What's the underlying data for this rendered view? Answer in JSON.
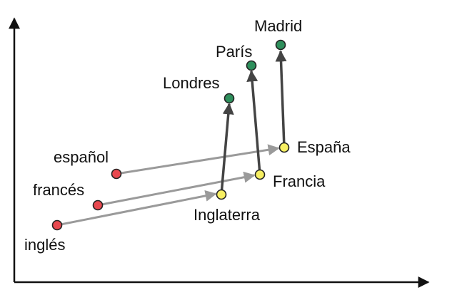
{
  "diagram": {
    "colors": {
      "language": "#e8484f",
      "country": "#f7ef62",
      "capital": "#2e8f5c",
      "relation_language_country": "#9a9a9a",
      "relation_country_capital": "#444444",
      "axis": "#111111"
    },
    "groups": [
      {
        "language": "español",
        "country": "España",
        "capital": "Madrid"
      },
      {
        "language": "francés",
        "country": "Francia",
        "capital": "París"
      },
      {
        "language": "inglés",
        "country": "Inglaterra",
        "capital": "Londres"
      }
    ]
  }
}
